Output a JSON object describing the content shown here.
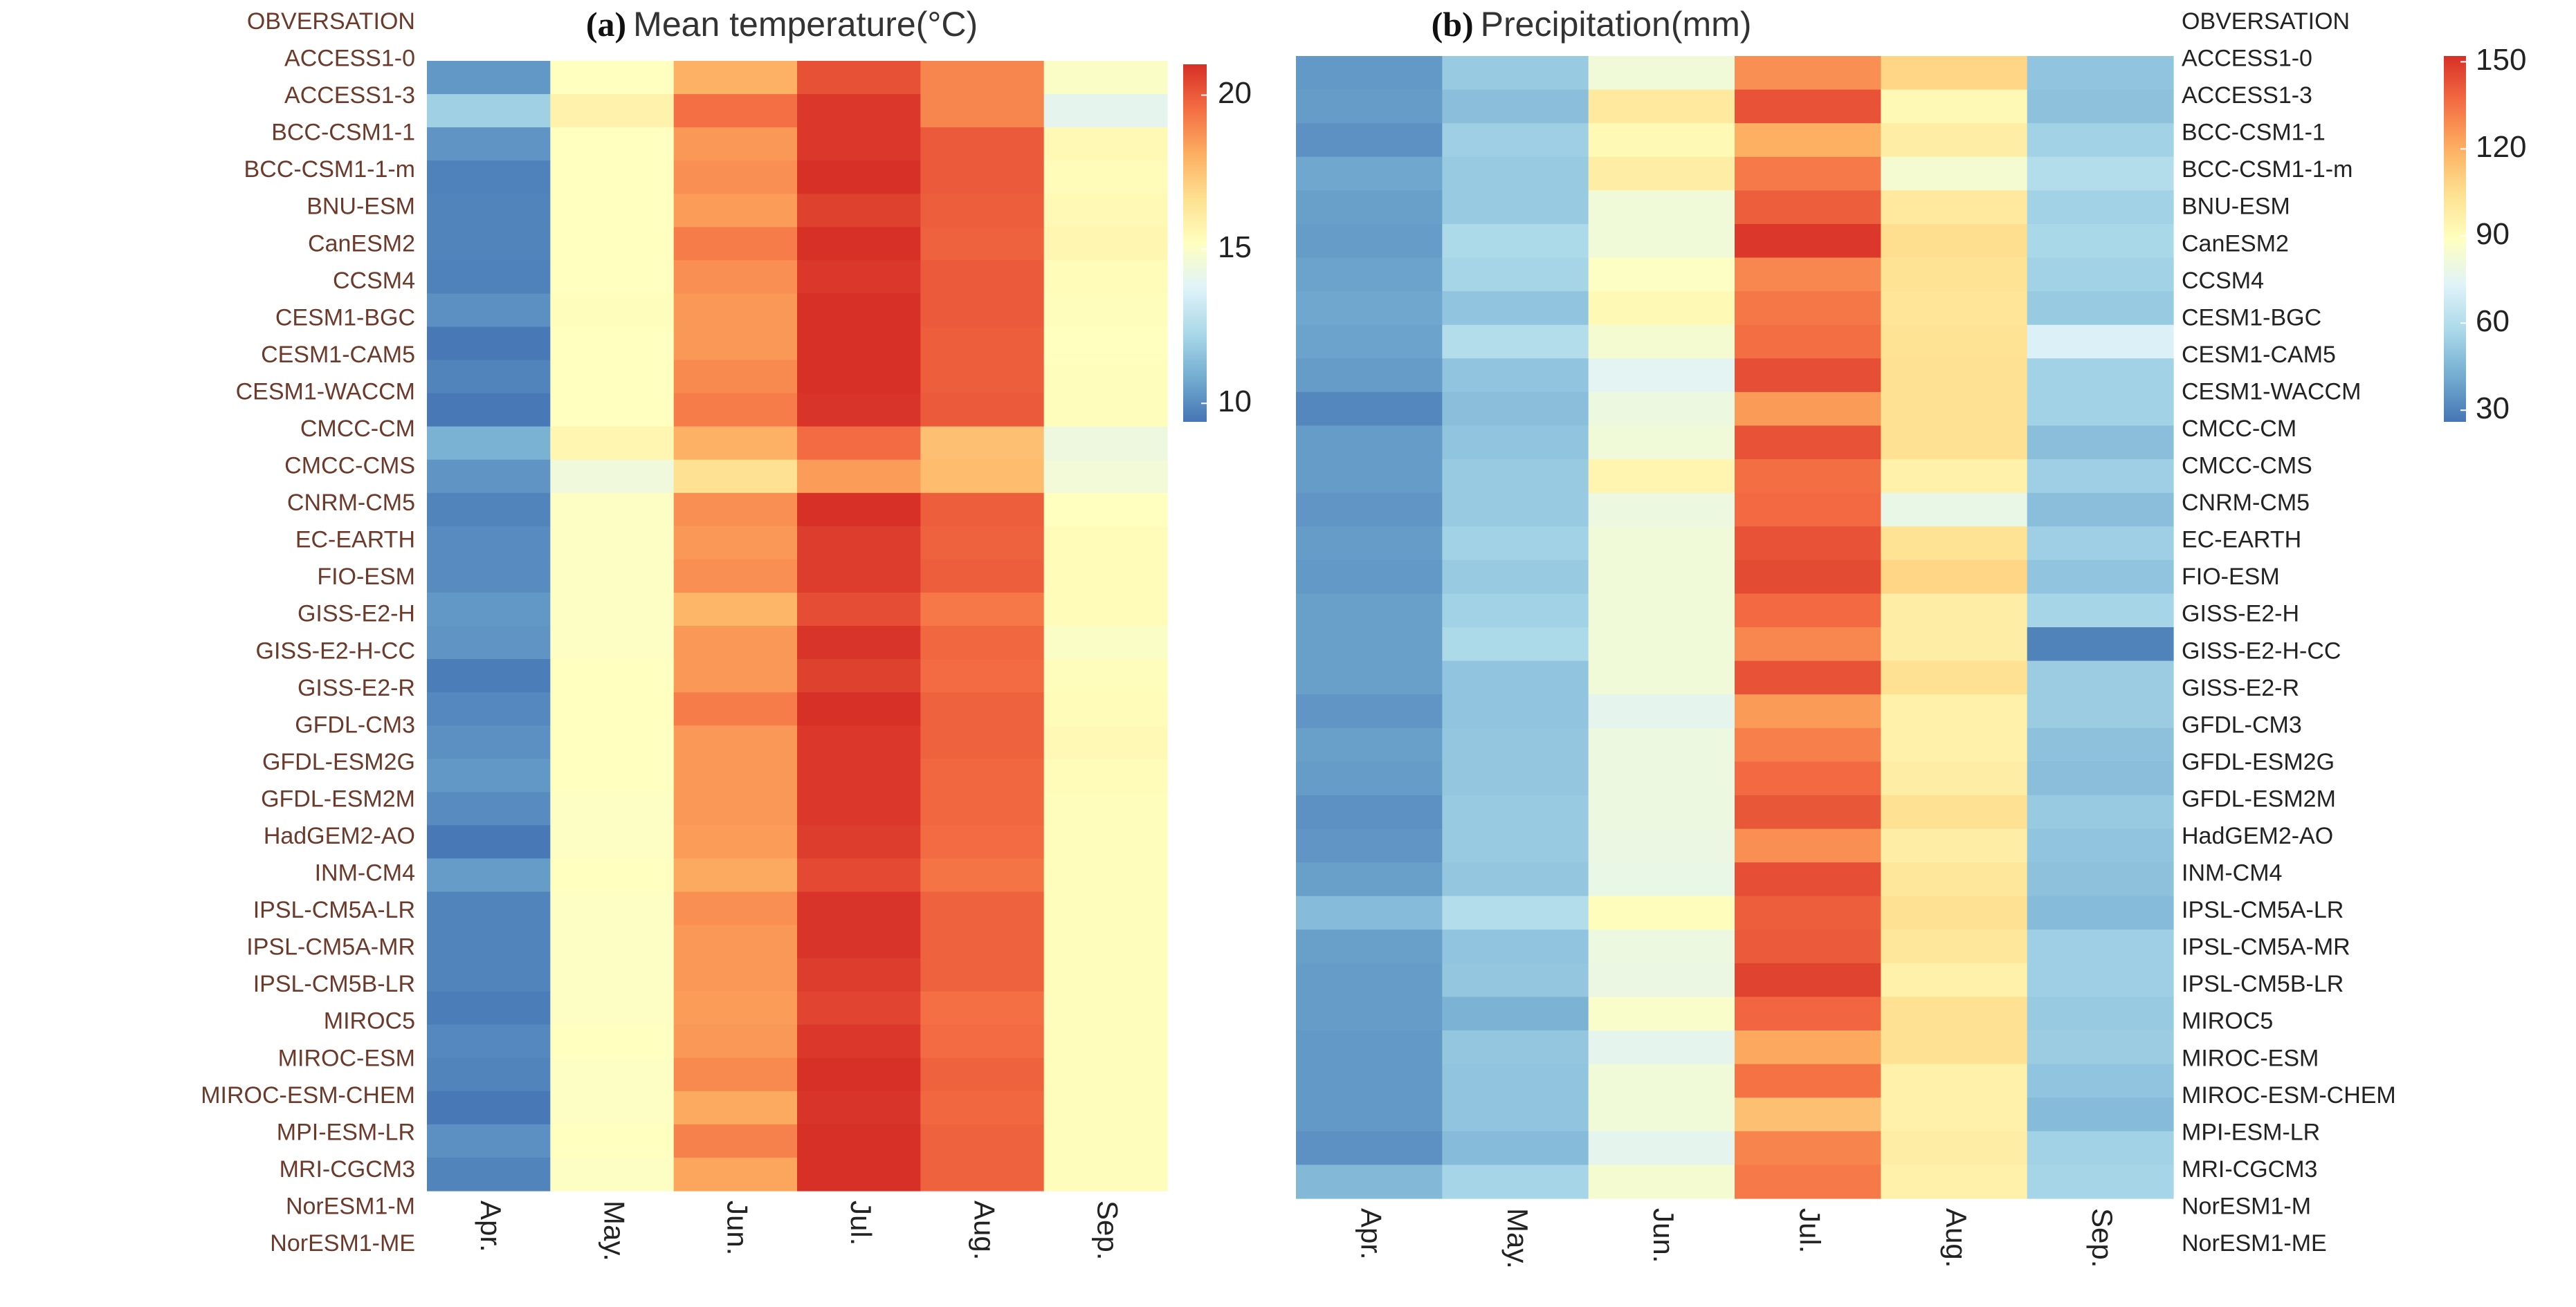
{
  "chart_data": [
    {
      "type": "heatmap",
      "panel": "(a)",
      "title": "Mean temperature(°C)",
      "columns": [
        "Apr.",
        "May.",
        "Jun.",
        "Jul.",
        "Aug.",
        "Sep."
      ],
      "rows": [
        "OBVERSATION",
        "ACCESS1-0",
        "ACCESS1-3",
        "BCC-CSM1-1",
        "BCC-CSM1-1-m",
        "BNU-ESM",
        "CanESM2",
        "CCSM4",
        "CESM1-BGC",
        "CESM1-CAM5",
        "CESM1-WACCM",
        "CMCC-CM",
        "CMCC-CMS",
        "CNRM-CM5",
        "EC-EARTH",
        "FIO-ESM",
        "GISS-E2-H",
        "GISS-E2-H-CC",
        "GISS-E2-R",
        "GFDL-CM3",
        "GFDL-ESM2G",
        "GFDL-ESM2M",
        "HadGEM2-AO",
        "INM-CM4",
        "IPSL-CM5A-LR",
        "IPSL-CM5A-MR",
        "IPSL-CM5B-LR",
        "MIROC5",
        "MIROC-ESM",
        "MIROC-ESM-CHEM",
        "MPI-ESM-LR",
        "MRI-CGCM3",
        "NorESM1-M",
        "NorESM1-ME"
      ],
      "values": [
        [
          10.3,
          15.2,
          18.0,
          20.2,
          19.0,
          15.0
        ],
        [
          12.0,
          15.8,
          19.5,
          20.8,
          19.0,
          14.0
        ],
        [
          10.2,
          15.2,
          18.6,
          20.8,
          20.0,
          15.5
        ],
        [
          9.7,
          15.2,
          18.8,
          21.0,
          20.0,
          15.4
        ],
        [
          9.8,
          15.2,
          18.5,
          20.6,
          19.9,
          15.5
        ],
        [
          9.8,
          15.2,
          19.2,
          21.0,
          19.8,
          15.6
        ],
        [
          9.7,
          15.2,
          18.8,
          20.8,
          20.0,
          15.4
        ],
        [
          10.1,
          15.3,
          18.6,
          21.0,
          20.0,
          15.3
        ],
        [
          9.5,
          15.2,
          18.6,
          21.0,
          19.9,
          15.2
        ],
        [
          9.8,
          15.2,
          18.9,
          21.0,
          19.9,
          15.3
        ],
        [
          9.5,
          15.2,
          19.2,
          20.9,
          20.0,
          15.3
        ],
        [
          11.0,
          15.6,
          18.0,
          19.6,
          17.6,
          14.4
        ],
        [
          10.2,
          14.5,
          16.6,
          18.5,
          17.7,
          14.6
        ],
        [
          9.8,
          15.1,
          18.8,
          21.2,
          19.9,
          15.2
        ],
        [
          10.0,
          15.1,
          18.6,
          20.7,
          19.8,
          15.4
        ],
        [
          10.0,
          15.1,
          18.8,
          20.7,
          19.9,
          15.4
        ],
        [
          10.3,
          15.1,
          17.9,
          20.3,
          19.3,
          15.4
        ],
        [
          10.2,
          15.1,
          18.6,
          20.9,
          19.7,
          15.0
        ],
        [
          9.6,
          15.2,
          18.6,
          20.6,
          19.6,
          15.3
        ],
        [
          9.9,
          15.2,
          19.2,
          21.1,
          19.8,
          15.4
        ],
        [
          10.1,
          15.2,
          18.6,
          20.8,
          19.8,
          15.5
        ],
        [
          10.3,
          15.2,
          18.6,
          20.8,
          19.7,
          15.4
        ],
        [
          10.0,
          15.1,
          18.6,
          20.8,
          19.7,
          15.3
        ],
        [
          9.5,
          15.1,
          18.5,
          20.7,
          19.6,
          15.3
        ],
        [
          10.4,
          15.2,
          18.2,
          20.4,
          19.4,
          15.3
        ],
        [
          9.8,
          15.1,
          18.8,
          20.9,
          19.8,
          15.3
        ],
        [
          9.8,
          15.1,
          18.6,
          20.9,
          19.8,
          15.3
        ],
        [
          9.8,
          15.1,
          18.6,
          20.7,
          19.8,
          15.3
        ],
        [
          9.6,
          15.1,
          18.5,
          20.5,
          19.5,
          15.3
        ],
        [
          9.9,
          15.2,
          18.6,
          20.8,
          19.6,
          15.3
        ],
        [
          9.8,
          15.1,
          18.9,
          21.0,
          19.8,
          15.3
        ],
        [
          9.5,
          15.1,
          18.2,
          20.9,
          19.7,
          15.3
        ],
        [
          10.1,
          15.2,
          19.1,
          21.0,
          19.8,
          15.3
        ],
        [
          9.8,
          15.1,
          18.3,
          21.0,
          19.8,
          15.3
        ]
      ],
      "colorbar": {
        "range": [
          9.4,
          21.0
        ],
        "ticks": [
          "10",
          "15",
          "20"
        ],
        "tick_values": [
          10,
          15,
          20
        ]
      },
      "row_label_side": "left"
    },
    {
      "type": "heatmap",
      "panel": "(b)",
      "title": "Precipitation(mm)",
      "columns": [
        "Apr.",
        "May.",
        "Jun.",
        "Jul.",
        "Aug.",
        "Sep."
      ],
      "rows": [
        "OBVERSATION",
        "ACCESS1-0",
        "ACCESS1-3",
        "BCC-CSM1-1",
        "BCC-CSM1-1-m",
        "BNU-ESM",
        "CanESM2",
        "CCSM4",
        "CESM1-BGC",
        "CESM1-CAM5",
        "CESM1-WACCM",
        "CMCC-CM",
        "CMCC-CMS",
        "CNRM-CM5",
        "EC-EARTH",
        "FIO-ESM",
        "GISS-E2-H",
        "GISS-E2-H-CC",
        "GISS-E2-R",
        "GFDL-CM3",
        "GFDL-ESM2G",
        "GFDL-ESM2M",
        "HadGEM2-AO",
        "INM-CM4",
        "IPSL-CM5A-LR",
        "IPSL-CM5A-MR",
        "IPSL-CM5B-LR",
        "MIROC5",
        "MIROC-ESM",
        "MIROC-ESM-CHEM",
        "MPI-ESM-LR",
        "MRI-CGCM3",
        "NorESM1-M",
        "NorESM1-ME"
      ],
      "values": [
        [
          36,
          52,
          82,
          128,
          108,
          50
        ],
        [
          37,
          48,
          100,
          143,
          92,
          49
        ],
        [
          34,
          54,
          92,
          120,
          98,
          55
        ],
        [
          40,
          52,
          98,
          133,
          84,
          60
        ],
        [
          38,
          52,
          82,
          140,
          100,
          55
        ],
        [
          37,
          58,
          82,
          150,
          105,
          57
        ],
        [
          39,
          56,
          88,
          130,
          103,
          55
        ],
        [
          40,
          50,
          92,
          134,
          102,
          52
        ],
        [
          39,
          60,
          84,
          136,
          103,
          72
        ],
        [
          37,
          50,
          75,
          144,
          104,
          55
        ],
        [
          31,
          48,
          80,
          125,
          104,
          55
        ],
        [
          37,
          50,
          82,
          143,
          104,
          48
        ],
        [
          37,
          52,
          94,
          136,
          96,
          54
        ],
        [
          35,
          52,
          80,
          137,
          78,
          48
        ],
        [
          37,
          55,
          82,
          143,
          103,
          54
        ],
        [
          36,
          52,
          82,
          145,
          108,
          50
        ],
        [
          38,
          55,
          82,
          137,
          98,
          56
        ],
        [
          38,
          58,
          82,
          130,
          98,
          30
        ],
        [
          38,
          50,
          82,
          143,
          104,
          53
        ],
        [
          35,
          50,
          76,
          125,
          96,
          53
        ],
        [
          38,
          51,
          80,
          132,
          96,
          49
        ],
        [
          37,
          51,
          80,
          137,
          98,
          48
        ],
        [
          34,
          52,
          80,
          142,
          104,
          52
        ],
        [
          35,
          52,
          79,
          128,
          98,
          50
        ],
        [
          38,
          51,
          78,
          144,
          101,
          49
        ],
        [
          47,
          60,
          90,
          140,
          104,
          47
        ],
        [
          38,
          50,
          80,
          141,
          101,
          54
        ],
        [
          37,
          51,
          79,
          147,
          96,
          54
        ],
        [
          37,
          44,
          86,
          138,
          104,
          52
        ],
        [
          36,
          51,
          76,
          122,
          104,
          53
        ],
        [
          36,
          50,
          82,
          135,
          96,
          50
        ],
        [
          36,
          50,
          82,
          115,
          96,
          47
        ],
        [
          34,
          47,
          76,
          131,
          98,
          55
        ],
        [
          46,
          56,
          84,
          133,
          96,
          56
        ]
      ],
      "colorbar": {
        "range": [
          26,
          152
        ],
        "ticks": [
          "30",
          "60",
          "90",
          "120",
          "150"
        ],
        "tick_values": [
          30,
          60,
          90,
          120,
          150
        ]
      },
      "row_label_side": "right"
    }
  ],
  "colors": {
    "scale": [
      "#4575b4",
      "#74add1",
      "#abd9e9",
      "#e0f3f8",
      "#ffffbf",
      "#fee090",
      "#fdae61",
      "#f46d43",
      "#d73027"
    ],
    "left_label": "#6b3a2a",
    "right_label": "#222222"
  }
}
